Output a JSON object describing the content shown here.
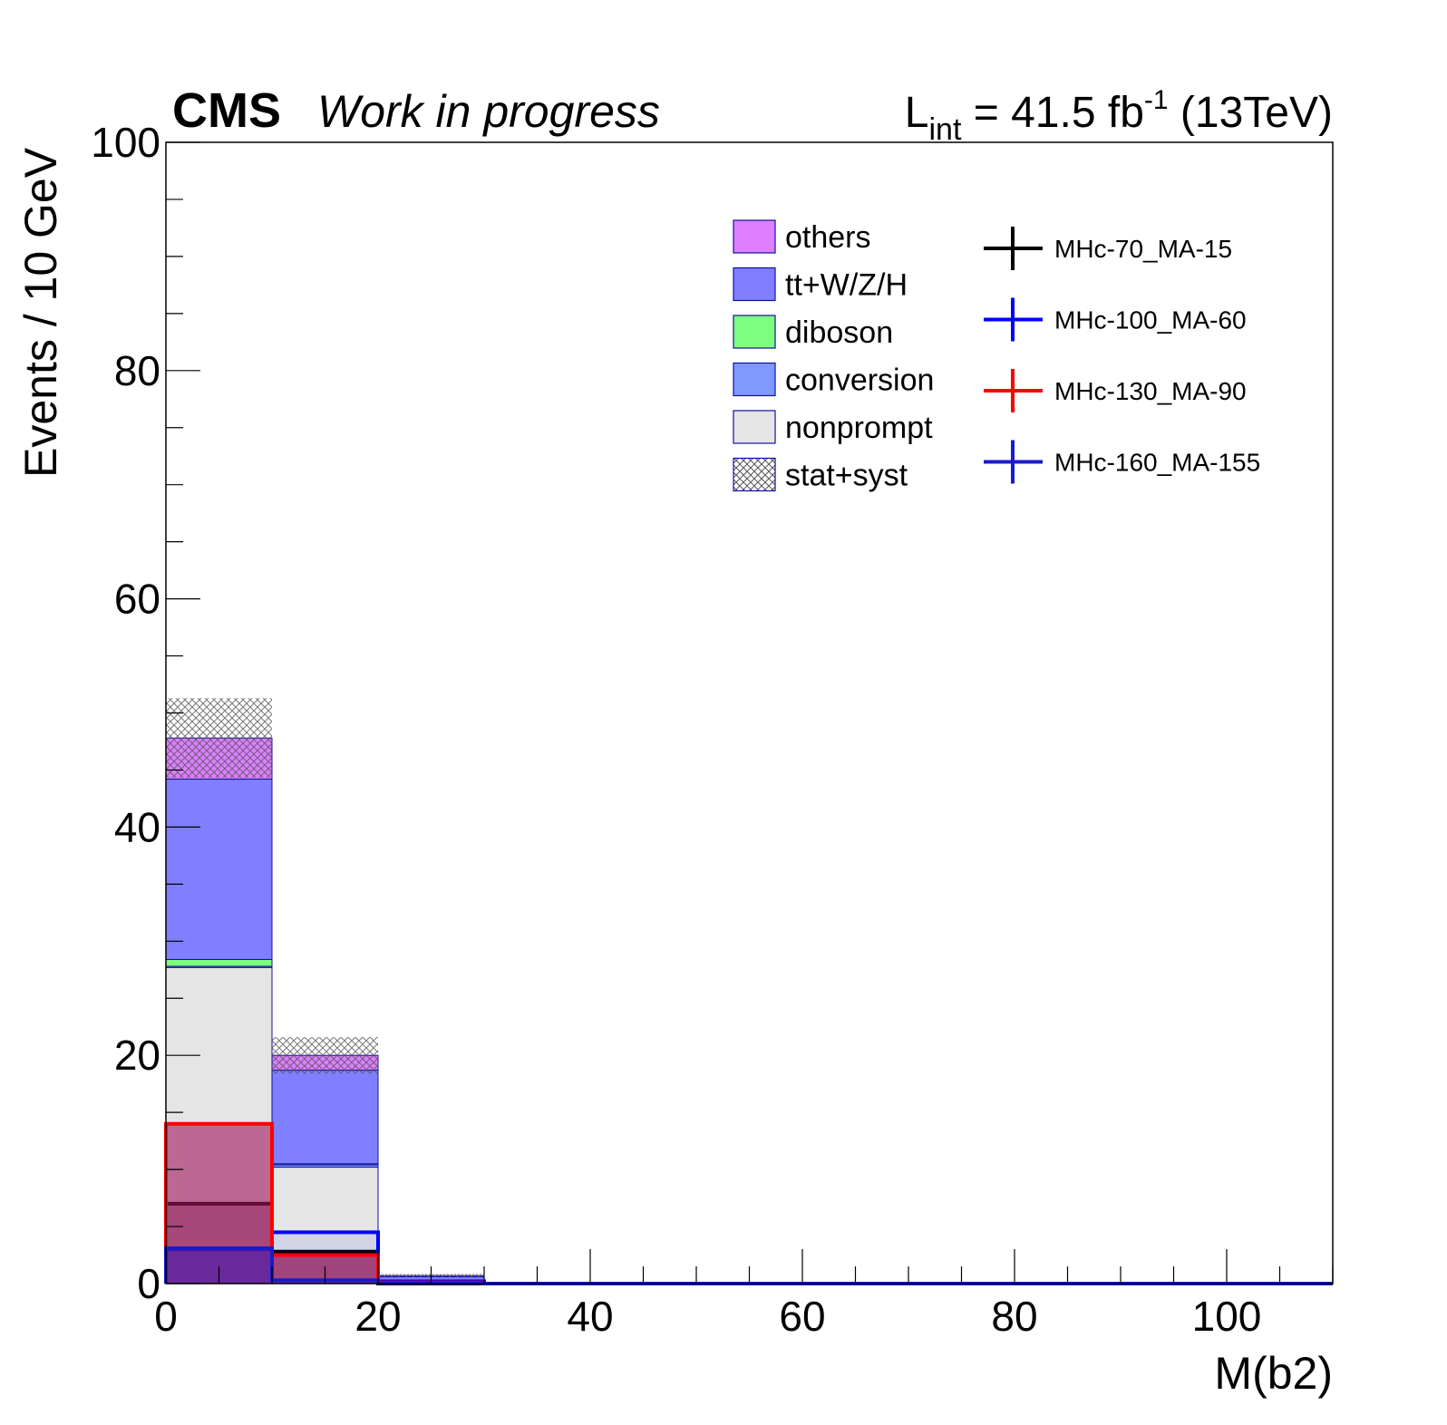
{
  "header": {
    "experiment": "CMS",
    "status": "Work in progress",
    "lumi_prefix": "L",
    "lumi_sub": "int",
    "lumi_main": " = 41.5 fb",
    "lumi_sup": "-1",
    "lumi_energy": " (13TeV)"
  },
  "chart_data": {
    "type": "bar",
    "stacked": true,
    "xlabel": "M(b2)",
    "ylabel": "Events / 10 GeV",
    "xlim": [
      0,
      110
    ],
    "ylim": [
      0,
      100
    ],
    "x_ticks": [
      "0",
      "20",
      "40",
      "60",
      "80",
      "100"
    ],
    "y_ticks": [
      "0",
      "20",
      "40",
      "60",
      "80",
      "100"
    ],
    "bin_edges": [
      0,
      10,
      20,
      30,
      40,
      50,
      60,
      70,
      80,
      90,
      100,
      110
    ],
    "background_series": [
      {
        "name": "nonprompt",
        "color": "#e5e5e5",
        "values": [
          27.7,
          10.2,
          0.1,
          0,
          0,
          0,
          0,
          0,
          0,
          0,
          0
        ]
      },
      {
        "name": "conversion",
        "color": "#7f99ff",
        "values": [
          0.1,
          0.2,
          0.05,
          0,
          0,
          0,
          0,
          0,
          0,
          0,
          0
        ]
      },
      {
        "name": "diboson",
        "color": "#7fff7f",
        "values": [
          0.6,
          0.1,
          0.05,
          0,
          0,
          0,
          0,
          0,
          0,
          0,
          0
        ]
      },
      {
        "name": "tt+W/Z/H",
        "color": "#7f7fff",
        "values": [
          15.8,
          8.2,
          0.4,
          0,
          0,
          0,
          0,
          0,
          0,
          0,
          0
        ]
      },
      {
        "name": "others",
        "color": "#dd7fff",
        "values": [
          3.6,
          1.3,
          0.1,
          0,
          0,
          0,
          0,
          0,
          0,
          0,
          0
        ]
      }
    ],
    "uncertainty": {
      "name": "stat+syst",
      "totals": [
        47.8,
        20.0,
        0.7,
        0,
        0,
        0,
        0,
        0,
        0,
        0,
        0
      ],
      "errors": [
        3.5,
        1.6,
        0.15,
        0,
        0,
        0,
        0,
        0,
        0,
        0,
        0
      ]
    },
    "signal_series": [
      {
        "name": "MHc-70_MA-15",
        "color": "#000000",
        "values": [
          7.0,
          2.8,
          0,
          0,
          0,
          0,
          0,
          0,
          0,
          0,
          0
        ]
      },
      {
        "name": "MHc-100_MA-60",
        "color": "#0000ff",
        "values": [
          3.0,
          4.5,
          0.2,
          0,
          0,
          0,
          0,
          0,
          0,
          0,
          0
        ]
      },
      {
        "name": "MHc-130_MA-90",
        "color": "#ff0000",
        "values": [
          14.0,
          2.5,
          0.1,
          0,
          0,
          0,
          0,
          0,
          0,
          0,
          0
        ]
      },
      {
        "name": "MHc-160_MA-155",
        "color": "#1a1acc",
        "values": [
          3.1,
          0.3,
          0.05,
          0,
          0,
          0,
          0,
          0,
          0,
          0,
          0
        ]
      }
    ],
    "legend": {
      "placement": "top-right",
      "background_entries": [
        "others",
        "tt+W/Z/H",
        "diboson",
        "conversion",
        "nonprompt",
        "stat+syst"
      ],
      "signal_entries": [
        "MHc-70_MA-15",
        "MHc-100_MA-60",
        "MHc-130_MA-90",
        "MHc-160_MA-155"
      ]
    },
    "grid": false
  }
}
